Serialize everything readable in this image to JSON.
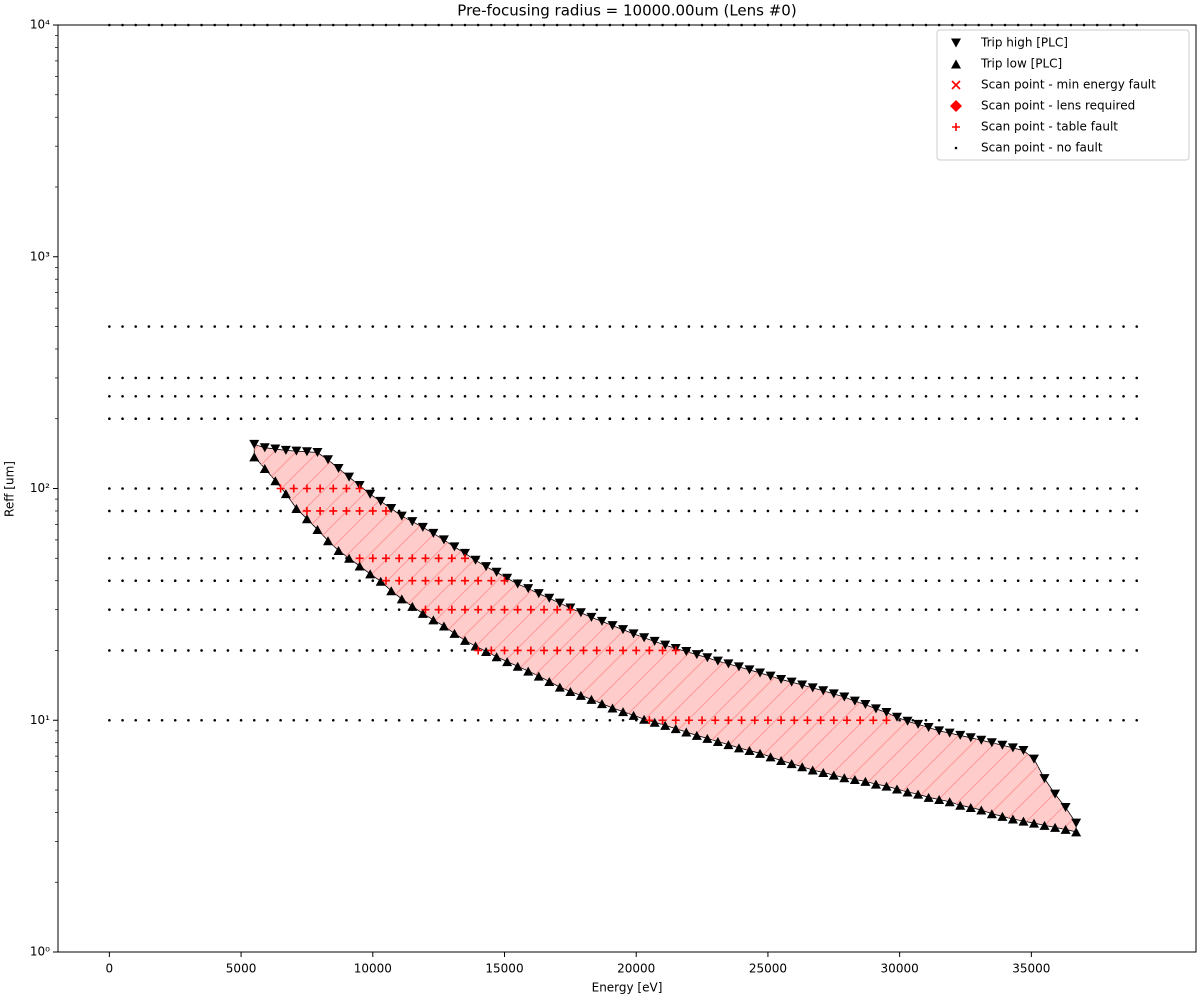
{
  "chart_data": {
    "type": "scatter",
    "title": "Pre-focusing radius = 10000.00um (Lens #0)",
    "x_label": "Energy [eV]",
    "y_label": "Reff [um]",
    "xlim": [
      -1950,
      41250
    ],
    "ylim": [
      1,
      10000
    ],
    "y_scale": "log",
    "xticks": [
      0,
      5000,
      10000,
      15000,
      20000,
      25000,
      30000,
      35000
    ],
    "yticks": [
      {
        "value": 1,
        "label": "10⁰"
      },
      {
        "value": 10,
        "label": "10¹"
      },
      {
        "value": 100,
        "label": "10²"
      },
      {
        "value": 1000,
        "label": "10³"
      },
      {
        "value": 10000,
        "label": "10⁴"
      }
    ],
    "yminorticks": [
      2,
      3,
      4,
      5,
      6,
      7,
      8,
      9,
      20,
      30,
      40,
      50,
      60,
      70,
      80,
      90,
      200,
      300,
      400,
      500,
      600,
      700,
      800,
      900,
      2000,
      3000,
      4000,
      5000,
      6000,
      7000,
      8000,
      9000
    ],
    "legend": "upper right",
    "fill_between": {
      "color": "#ffcccc",
      "edge": "#000000"
    },
    "series": [
      {
        "name": "Trip high [PLC]",
        "marker": "v",
        "color": "#000000",
        "x": [
          5500,
          5900,
          6300,
          6700,
          7100,
          7500,
          7900,
          8300,
          8700,
          9100,
          9500,
          9900,
          10300,
          10700,
          11100,
          11500,
          11900,
          12300,
          12700,
          13100,
          13500,
          13900,
          14300,
          14700,
          15100,
          15500,
          15900,
          16300,
          16700,
          17100,
          17500,
          17900,
          18300,
          18700,
          19100,
          19500,
          19900,
          20300,
          20700,
          21100,
          21500,
          21900,
          22300,
          22700,
          23100,
          23500,
          23900,
          24300,
          24700,
          25100,
          25500,
          25900,
          26300,
          26700,
          27100,
          27500,
          27900,
          28300,
          28700,
          29100,
          29500,
          29900,
          30300,
          30700,
          31100,
          31500,
          31900,
          32300,
          32700,
          33100,
          33500,
          33900,
          34300,
          34700,
          35100,
          35500,
          35900,
          36300,
          36700
        ],
        "y": [
          155,
          150,
          148,
          146,
          145,
          144,
          143,
          133,
          122,
          112,
          103,
          94.5,
          88,
          82,
          76,
          72,
          68,
          64,
          60,
          56,
          52.5,
          49,
          46,
          43.5,
          41,
          38.7,
          37,
          35.2,
          33.6,
          32,
          30.5,
          29.1,
          27.8,
          26.7,
          25.6,
          24.6,
          23.6,
          22.7,
          21.9,
          21.1,
          20.4,
          19.8,
          19.2,
          18.6,
          18,
          17.5,
          17,
          16.5,
          16,
          15.5,
          15,
          14.6,
          14.2,
          13.8,
          13.4,
          13,
          12.6,
          12.1,
          11.7,
          11.2,
          10.8,
          10.3,
          9.9,
          9.6,
          9.3,
          9,
          8.8,
          8.6,
          8.4,
          8.2,
          8,
          7.8,
          7.6,
          7.4,
          6.8,
          5.6,
          4.8,
          4.2,
          3.6
        ]
      },
      {
        "name": "Trip low [PLC]",
        "marker": "^",
        "color": "#000000",
        "x": [
          5500,
          5900,
          6300,
          6700,
          7100,
          7500,
          7900,
          8300,
          8700,
          9100,
          9500,
          9900,
          10300,
          10700,
          11100,
          11500,
          11900,
          12300,
          12700,
          13100,
          13500,
          13900,
          14300,
          14700,
          15100,
          15500,
          15900,
          16300,
          16700,
          17100,
          17500,
          17900,
          18300,
          18700,
          19100,
          19500,
          19900,
          20300,
          20700,
          21100,
          21500,
          21900,
          22300,
          22700,
          23100,
          23500,
          23900,
          24300,
          24700,
          25100,
          25500,
          25900,
          26300,
          26700,
          27100,
          27500,
          27900,
          28300,
          28700,
          29100,
          29500,
          29900,
          30300,
          30700,
          31100,
          31500,
          31900,
          32300,
          32700,
          33100,
          33500,
          33900,
          34300,
          34700,
          35100,
          35500,
          35900,
          36300,
          36700
        ],
        "y": [
          137,
          122,
          108,
          95,
          82,
          74,
          66.5,
          59.5,
          54,
          50,
          46.3,
          42.8,
          39.8,
          36.2,
          33.4,
          31,
          28.9,
          27.1,
          25.5,
          23.7,
          22.1,
          20.9,
          19.8,
          18.8,
          17.9,
          17.1,
          16.3,
          15.5,
          14.7,
          13.9,
          13.3,
          12.8,
          12.3,
          11.8,
          11.3,
          10.9,
          10.5,
          10.1,
          9.8,
          9.5,
          9.2,
          8.9,
          8.6,
          8.35,
          8.1,
          7.85,
          7.6,
          7.4,
          7.2,
          6.95,
          6.7,
          6.5,
          6.3,
          6.1,
          5.95,
          5.8,
          5.65,
          5.55,
          5.45,
          5.3,
          5.2,
          5.05,
          4.9,
          4.8,
          4.65,
          4.55,
          4.45,
          4.3,
          4.2,
          4.1,
          3.95,
          3.85,
          3.75,
          3.67,
          3.6,
          3.52,
          3.45,
          3.38,
          3.3
        ]
      },
      {
        "name": "Scan point - min energy fault",
        "marker": "x",
        "color": "#ff0000",
        "x": [],
        "y": []
      },
      {
        "name": "Scan point - lens required",
        "marker": "D",
        "color": "#ff0000",
        "x": [],
        "y": []
      },
      {
        "name": "Scan point - table fault",
        "marker": "+",
        "color": "#ff0000",
        "x": [
          6500,
          7000,
          7500,
          8000,
          8500,
          9000,
          9500,
          7500,
          8000,
          8500,
          9000,
          9500,
          10000,
          10500,
          9500,
          10000,
          10500,
          11000,
          11500,
          12000,
          12500,
          13000,
          13500,
          10500,
          11000,
          11500,
          12000,
          12500,
          13000,
          13500,
          14000,
          14500,
          15000,
          12000,
          12500,
          13000,
          13500,
          14000,
          14500,
          15000,
          15500,
          16000,
          16500,
          17000,
          17500,
          14000,
          14500,
          15000,
          15500,
          16000,
          16500,
          17000,
          17500,
          18000,
          18500,
          19000,
          19500,
          20000,
          20500,
          21000,
          21500,
          20500,
          21000,
          21500,
          22000,
          22500,
          23000,
          23500,
          24000,
          24500,
          25000,
          25500,
          26000,
          26500,
          27000,
          27500,
          28000,
          28500,
          29000,
          29500
        ],
        "y": [
          100,
          100,
          100,
          100,
          100,
          100,
          100,
          80,
          80,
          80,
          80,
          80,
          80,
          80,
          50,
          50,
          50,
          50,
          50,
          50,
          50,
          50,
          50,
          40,
          40,
          40,
          40,
          40,
          40,
          40,
          40,
          40,
          40,
          30,
          30,
          30,
          30,
          30,
          30,
          30,
          30,
          30,
          30,
          30,
          30,
          20,
          20,
          20,
          20,
          20,
          20,
          20,
          20,
          20,
          20,
          20,
          20,
          20,
          20,
          20,
          20,
          10,
          10,
          10,
          10,
          10,
          10,
          10,
          10,
          10,
          10,
          10,
          10,
          10,
          10,
          10,
          10,
          10,
          10,
          10
        ]
      },
      {
        "name": "Scan point - no fault",
        "marker": ".",
        "color": "#000000",
        "energies": [
          0,
          500,
          1000,
          1500,
          2000,
          2500,
          3000,
          3500,
          4000,
          4500,
          5000,
          5500,
          6000,
          6500,
          7000,
          7500,
          8000,
          8500,
          9000,
          9500,
          10000,
          10500,
          11000,
          11500,
          12000,
          12500,
          13000,
          13500,
          14000,
          14500,
          15000,
          15500,
          16000,
          16500,
          17000,
          17500,
          18000,
          18500,
          19000,
          19500,
          20000,
          20500,
          21000,
          21500,
          22000,
          22500,
          23000,
          23500,
          24000,
          24500,
          25000,
          25500,
          26000,
          26500,
          27000,
          27500,
          28000,
          28500,
          29000,
          29500,
          30000,
          30500,
          31000,
          31500,
          32000,
          32500,
          33000,
          33500,
          34000,
          34500,
          35000,
          35500,
          36000,
          36500,
          37000,
          37500,
          38000,
          38500,
          39000
        ],
        "reff": [
          10,
          20,
          30,
          40,
          50,
          80,
          100,
          200,
          250,
          300,
          500,
          10000
        ]
      }
    ]
  }
}
